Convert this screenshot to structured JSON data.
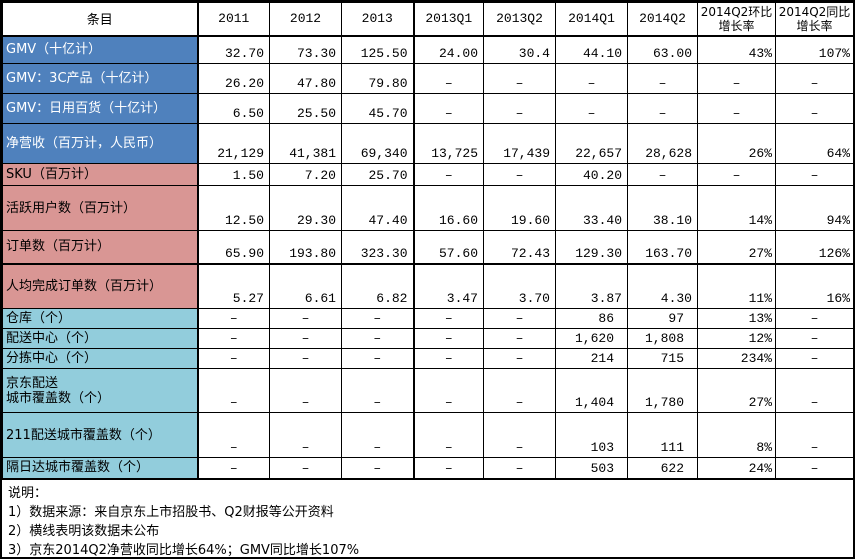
{
  "colors": {
    "blue": "#4F81BD",
    "pink": "#D99694",
    "cyan": "#92CDDC",
    "blue_text": "#FFFFFF",
    "text": "#000000",
    "border": "#000000",
    "background": "#FFFFFF"
  },
  "table": {
    "header": [
      "条目",
      "2011",
      "2012",
      "2013",
      "2013Q1",
      "2013Q2",
      "2014Q1",
      "2014Q2",
      "2014Q2环比增长率",
      "2014Q2同比增长率"
    ],
    "rows": [
      {
        "label": "GMV（十亿计）",
        "section": "blue",
        "values": [
          "32.70",
          "73.30",
          "125.50",
          "24.00",
          "30.4",
          "44.10",
          "63.00",
          "43%",
          "107%"
        ]
      },
      {
        "label": "GMV：3C产品（十亿计）",
        "section": "blue",
        "values": [
          "26.20",
          "47.80",
          "79.80",
          "–",
          "–",
          "–",
          "–",
          "–",
          "–"
        ]
      },
      {
        "label": "GMV：日用百货（十亿计）",
        "section": "blue",
        "values": [
          "6.50",
          "25.50",
          "45.70",
          "–",
          "–",
          "–",
          "–",
          "–",
          "–"
        ]
      },
      {
        "label": "净营收（百万计，人民币）",
        "section": "blue",
        "values": [
          "21,129",
          "41,381",
          "69,340",
          "13,725",
          "17,439",
          "22,657",
          "28,628",
          "26%",
          "64%"
        ]
      },
      {
        "label": "SKU（百万计）",
        "section": "pink",
        "values": [
          "1.50",
          "7.20",
          "25.70",
          "–",
          "–",
          "40.20",
          "–",
          "–",
          "–"
        ]
      },
      {
        "label": "活跃用户数（百万计）",
        "section": "pink",
        "values": [
          "12.50",
          "29.30",
          "47.40",
          "16.60",
          "19.60",
          "33.40",
          "38.10",
          "14%",
          "94%"
        ]
      },
      {
        "label": "订单数（百万计）",
        "section": "pink",
        "values": [
          "65.90",
          "193.80",
          "323.30",
          "57.60",
          "72.43",
          "129.30",
          "163.70",
          "27%",
          "126%"
        ]
      },
      {
        "label": "人均完成订单数（百万计）",
        "section": "pink",
        "values": [
          "5.27",
          "6.61",
          "6.82",
          "3.47",
          "3.70",
          "3.87",
          "4.30",
          "11%",
          "16%"
        ]
      },
      {
        "label": "仓库（个）",
        "section": "cyan",
        "values": [
          "–",
          "–",
          "–",
          "–",
          "–",
          "86",
          "97",
          "13%",
          "–"
        ]
      },
      {
        "label": "配送中心（个）",
        "section": "cyan",
        "values": [
          "–",
          "–",
          "–",
          "–",
          "–",
          "1,620",
          "1,808",
          "12%",
          "–"
        ]
      },
      {
        "label": "分拣中心（个）",
        "section": "cyan",
        "values": [
          "–",
          "–",
          "–",
          "–",
          "–",
          "214",
          "715",
          "234%",
          "–"
        ]
      },
      {
        "label": "京东配送\n城市覆盖数（个）",
        "section": "cyan",
        "values": [
          "–",
          "–",
          "–",
          "–",
          "–",
          "1,404",
          "1,780",
          "27%",
          "–"
        ]
      },
      {
        "label": "211配送城市覆盖数（个）",
        "section": "cyan",
        "values": [
          "–",
          "–",
          "–",
          "–",
          "–",
          "103",
          "111",
          "8%",
          "–"
        ]
      },
      {
        "label": "隔日达城市覆盖数（个）",
        "section": "cyan",
        "values": [
          "–",
          "–",
          "–",
          "–",
          "–",
          "503",
          "622",
          "24%",
          "–"
        ]
      }
    ]
  },
  "notes": {
    "title": "说明：",
    "lines": [
      "1）数据来源：来自京东上市招股书、Q2财报等公开资料",
      "2）横线表明该数据未公布",
      "3）京东2014Q2净营收同比增长64%；GMV同比增长107%"
    ]
  }
}
